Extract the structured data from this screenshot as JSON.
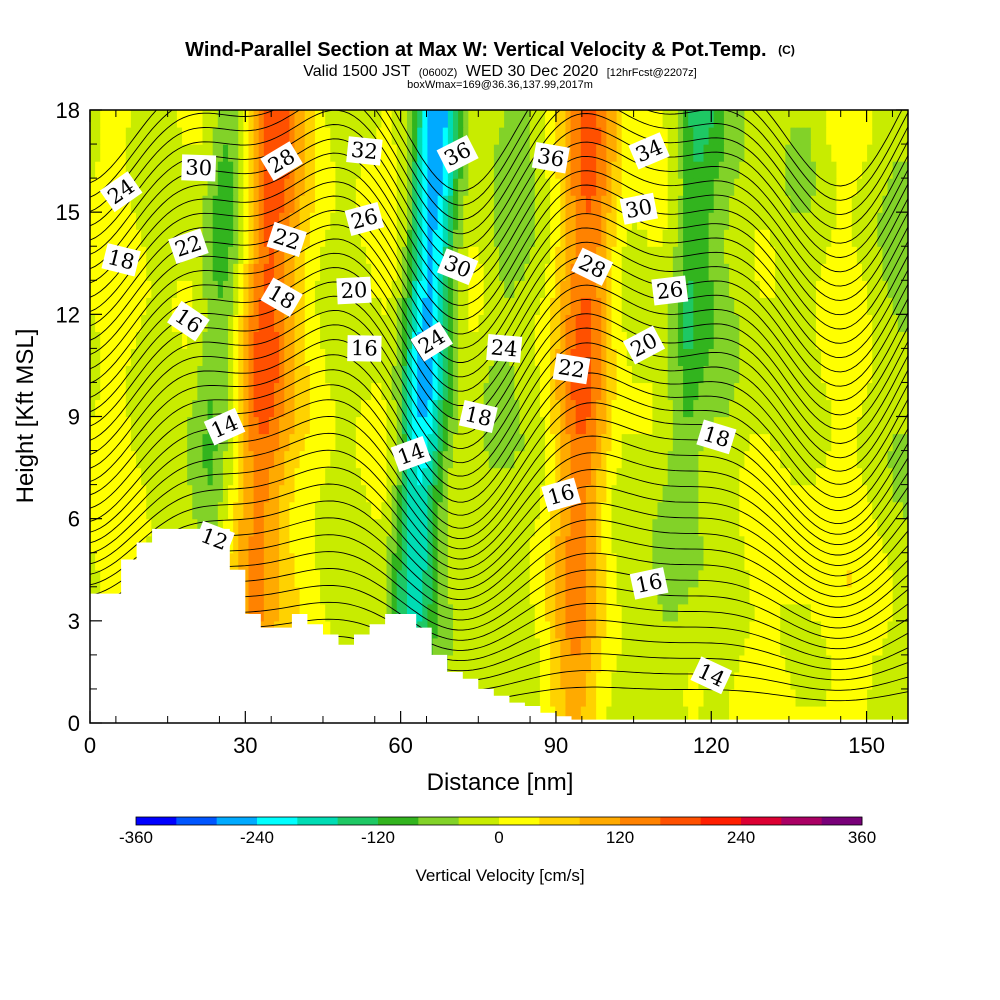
{
  "title": "Wind-Parallel Section at Max W: Vertical Velocity & Pot.Temp.",
  "title_badge": "(C)",
  "subtitle_a": "Valid 1500 JST",
  "subtitle_b": "(0600Z)",
  "subtitle_c": "WED 30 Dec 2020",
  "subtitle_d": "[12hrFcst@2207z]",
  "subtitle_line2": "boxWmax=169@36.36,137.99,2017m",
  "chart_data": {
    "type": "heatmap",
    "xlabel": "Distance [nm]",
    "ylabel": "Height [Kft MSL]",
    "xlim": [
      0,
      158
    ],
    "ylim": [
      0,
      18
    ],
    "xticks": [
      0,
      30,
      60,
      90,
      120,
      150
    ],
    "yticks": [
      0,
      3,
      6,
      9,
      12,
      15,
      18
    ],
    "colorbar": {
      "label": "Vertical Velocity [cm/s]",
      "min": -360,
      "max": 360,
      "step": 40,
      "tick_values": [
        -360,
        -240,
        -120,
        0,
        120,
        240,
        360
      ],
      "colors": [
        "#0000ff",
        "#0055ff",
        "#00aaff",
        "#00ffff",
        "#00dcb4",
        "#1ec864",
        "#32b41e",
        "#82d228",
        "#c8ec00",
        "#ffff00",
        "#ffd200",
        "#ffaa00",
        "#ff8200",
        "#ff5000",
        "#ff1e00",
        "#dc0032",
        "#aa0064",
        "#780078"
      ]
    },
    "velocity_bands": [
      {
        "x_center": 24,
        "value": -110,
        "label": "downdraft"
      },
      {
        "x_center": 33,
        "value": 190,
        "label": "updraft"
      },
      {
        "x_center": 64,
        "value": -240,
        "label": "downdraft"
      },
      {
        "x_center": 78,
        "value": -60,
        "label": "downdraft"
      },
      {
        "x_center": 95,
        "value": 150,
        "label": "updraft"
      },
      {
        "x_center": 114,
        "value": -90,
        "label": "downdraft"
      },
      {
        "x_center": 142,
        "value": 40,
        "label": "weak updraft"
      }
    ],
    "terrain_profile": {
      "x": [
        0,
        3,
        6,
        9,
        12,
        27,
        30,
        33,
        39,
        42,
        45,
        48,
        51,
        54,
        57,
        63,
        66,
        69,
        72,
        75,
        78,
        81,
        84,
        87,
        90,
        93,
        158
      ],
      "height": [
        3.8,
        3.8,
        4.8,
        5.3,
        5.7,
        4.5,
        3.2,
        2.8,
        3.2,
        2.9,
        2.6,
        2.3,
        2.6,
        2.9,
        3.2,
        2.8,
        2.0,
        1.5,
        1.3,
        1.0,
        0.8,
        0.6,
        0.5,
        0.3,
        0.2,
        0.1,
        0.1
      ]
    },
    "theta_labels": [
      {
        "text": "24",
        "x": 6,
        "y": 15.6
      },
      {
        "text": "30",
        "x": 21,
        "y": 16.3
      },
      {
        "text": "28",
        "x": 37,
        "y": 16.5
      },
      {
        "text": "32",
        "x": 53,
        "y": 16.8
      },
      {
        "text": "36",
        "x": 71,
        "y": 16.7
      },
      {
        "text": "36",
        "x": 89,
        "y": 16.6
      },
      {
        "text": "34",
        "x": 108,
        "y": 16.8
      },
      {
        "text": "18",
        "x": 6,
        "y": 13.6
      },
      {
        "text": "22",
        "x": 19,
        "y": 14.0
      },
      {
        "text": "22",
        "x": 38,
        "y": 14.2
      },
      {
        "text": "26",
        "x": 53,
        "y": 14.8
      },
      {
        "text": "30",
        "x": 71,
        "y": 13.4
      },
      {
        "text": "30",
        "x": 106,
        "y": 15.1
      },
      {
        "text": "28",
        "x": 97,
        "y": 13.4
      },
      {
        "text": "26",
        "x": 112,
        "y": 12.7
      },
      {
        "text": "18",
        "x": 37,
        "y": 12.5
      },
      {
        "text": "20",
        "x": 51,
        "y": 12.7
      },
      {
        "text": "16",
        "x": 19,
        "y": 11.8
      },
      {
        "text": "16",
        "x": 53,
        "y": 11.0
      },
      {
        "text": "24",
        "x": 66,
        "y": 11.2
      },
      {
        "text": "24",
        "x": 80,
        "y": 11.0
      },
      {
        "text": "20",
        "x": 107,
        "y": 11.1
      },
      {
        "text": "22",
        "x": 93,
        "y": 10.4
      },
      {
        "text": "14",
        "x": 26,
        "y": 8.7
      },
      {
        "text": "18",
        "x": 75,
        "y": 9.0
      },
      {
        "text": "14",
        "x": 62,
        "y": 7.9
      },
      {
        "text": "18",
        "x": 121,
        "y": 8.4
      },
      {
        "text": "16",
        "x": 91,
        "y": 6.7
      },
      {
        "text": "12",
        "x": 24,
        "y": 5.4
      },
      {
        "text": "16",
        "x": 108,
        "y": 4.1
      },
      {
        "text": "14",
        "x": 120,
        "y": 1.4
      }
    ]
  }
}
